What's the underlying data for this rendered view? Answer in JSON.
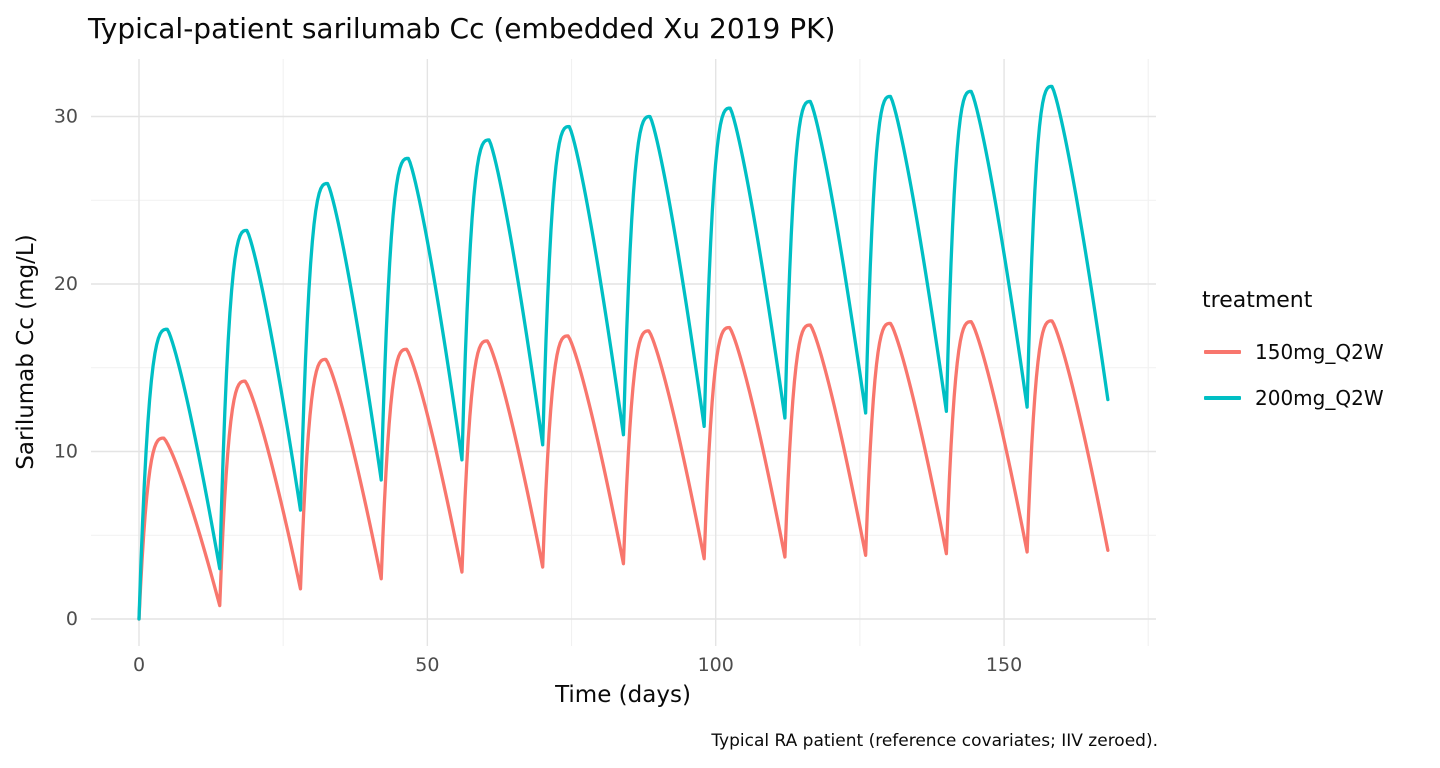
{
  "title": "Typical-patient sarilumab Cc (embedded Xu 2019 PK)",
  "caption": "Typical RA patient (reference covariates; IIV zeroed).",
  "axes": {
    "x": {
      "label": "Time (days)",
      "ticks": [
        0,
        50,
        100,
        150
      ],
      "minor_ticks": [
        25,
        75,
        125,
        175
      ]
    },
    "y": {
      "label": "Sarilumab Cc (mg/L)",
      "ticks": [
        0,
        10,
        20,
        30
      ],
      "minor_ticks": [
        5,
        15,
        25
      ]
    }
  },
  "legend": {
    "title": "treatment",
    "entries": [
      {
        "label": "150mg_Q2W",
        "color": "#F8766D"
      },
      {
        "label": "200mg_Q2W",
        "color": "#00BFC4"
      }
    ]
  },
  "style_colors": {
    "background": "#ffffff",
    "grid_major": "#e4e4e4",
    "grid_minor": "#f1f1f1",
    "tick_label": "#4d4d4d"
  },
  "chart_data": {
    "type": "line",
    "title": "Typical-patient sarilumab Cc (embedded Xu 2019 PK)",
    "xlabel": "Time (days)",
    "ylabel": "Sarilumab Cc (mg/L)",
    "xlim": [
      0,
      168
    ],
    "ylim": [
      0,
      31.8
    ],
    "grid": "on",
    "legend_position": "right",
    "dosing_interval_days": 14,
    "n_doses": 12,
    "segment_format": "[t_dose_day, C_trough_at_dose, t_peak_day, C_peak, t_next_dose_day, C_trough_end] in mg/L",
    "series": [
      {
        "name": "150mg_Q2W",
        "color": "#F8766D",
        "segments": [
          [
            0,
            0,
            4.3,
            10.8,
            14,
            0.8
          ],
          [
            14,
            0.8,
            18.4,
            14.2,
            28,
            1.8
          ],
          [
            28,
            1.8,
            32.4,
            15.5,
            42,
            2.4
          ],
          [
            42,
            2.4,
            46.4,
            16.1,
            56,
            2.8
          ],
          [
            56,
            2.8,
            60.4,
            16.6,
            70,
            3.1
          ],
          [
            70,
            3.1,
            74.4,
            16.9,
            84,
            3.3
          ],
          [
            84,
            3.3,
            88.4,
            17.2,
            98,
            3.6
          ],
          [
            98,
            3.6,
            102.4,
            17.4,
            112,
            3.7
          ],
          [
            112,
            3.7,
            116.4,
            17.55,
            126,
            3.8
          ],
          [
            126,
            3.8,
            130.3,
            17.65,
            140,
            3.9
          ],
          [
            140,
            3.9,
            144.3,
            17.75,
            154,
            4.0
          ],
          [
            154,
            4.0,
            158.3,
            17.8,
            168,
            4.1
          ]
        ]
      },
      {
        "name": "200mg_Q2W",
        "color": "#00BFC4",
        "segments": [
          [
            0,
            0,
            4.9,
            17.3,
            14,
            3.0
          ],
          [
            14,
            3.0,
            18.7,
            23.2,
            28,
            6.5
          ],
          [
            28,
            6.5,
            32.7,
            26.0,
            42,
            8.3
          ],
          [
            42,
            8.3,
            46.7,
            27.5,
            56,
            9.5
          ],
          [
            56,
            9.5,
            60.7,
            28.6,
            70,
            10.4
          ],
          [
            70,
            10.4,
            74.6,
            29.4,
            84,
            11.0
          ],
          [
            84,
            11.0,
            88.6,
            30.0,
            98,
            11.5
          ],
          [
            98,
            11.5,
            102.5,
            30.5,
            112,
            12.0
          ],
          [
            112,
            12.0,
            116.4,
            30.9,
            126,
            12.3
          ],
          [
            126,
            12.3,
            130.3,
            31.2,
            140,
            12.4
          ],
          [
            140,
            12.4,
            144.3,
            31.5,
            154,
            12.65
          ],
          [
            154,
            12.65,
            158.3,
            31.8,
            168,
            13.1
          ]
        ]
      }
    ]
  }
}
